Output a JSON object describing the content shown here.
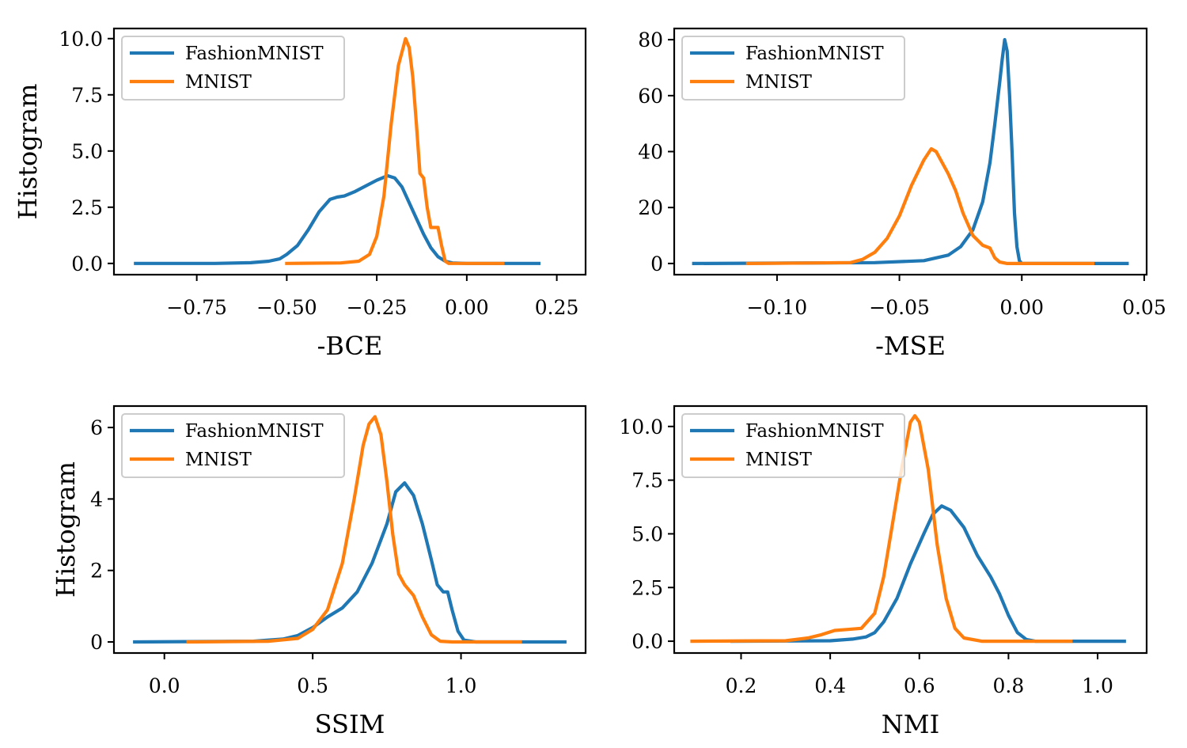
{
  "chart_data": [
    {
      "type": "line",
      "title": "",
      "xlabel": "-BCE",
      "ylabel": "Histogram",
      "xlim": [
        -0.98,
        0.33
      ],
      "ylim": [
        -0.5,
        10.45
      ],
      "xticks": [
        -0.75,
        -0.5,
        -0.25,
        0.0,
        0.25
      ],
      "xtick_labels": [
        "−0.75",
        "−0.50",
        "−0.25",
        "0.00",
        "0.25"
      ],
      "yticks": [
        0,
        2.5,
        5,
        7.5,
        10
      ],
      "ytick_labels": [
        "0.0",
        "2.5",
        "5.0",
        "7.5",
        "10.0"
      ],
      "grid": false,
      "legend_position": "upper left",
      "series": [
        {
          "name": "FashionMNIST",
          "color": "#1f77b4",
          "x": [
            -0.92,
            -0.7,
            -0.6,
            -0.55,
            -0.52,
            -0.5,
            -0.47,
            -0.44,
            -0.41,
            -0.38,
            -0.36,
            -0.34,
            -0.31,
            -0.28,
            -0.25,
            -0.22,
            -0.2,
            -0.18,
            -0.16,
            -0.14,
            -0.12,
            -0.1,
            -0.08,
            -0.06,
            -0.04,
            0.0,
            0.2
          ],
          "y": [
            0,
            0,
            0.03,
            0.1,
            0.2,
            0.4,
            0.8,
            1.5,
            2.3,
            2.85,
            2.95,
            3.0,
            3.2,
            3.45,
            3.7,
            3.9,
            3.8,
            3.4,
            2.7,
            2.0,
            1.3,
            0.7,
            0.3,
            0.1,
            0.02,
            0,
            0
          ]
        },
        {
          "name": "MNIST",
          "color": "#ff7f0e",
          "x": [
            -0.5,
            -0.35,
            -0.3,
            -0.27,
            -0.25,
            -0.23,
            -0.21,
            -0.19,
            -0.17,
            -0.16,
            -0.15,
            -0.14,
            -0.13,
            -0.12,
            -0.11,
            -0.1,
            -0.09,
            -0.08,
            -0.07,
            -0.06,
            -0.05,
            0.1
          ],
          "y": [
            0,
            0.02,
            0.1,
            0.4,
            1.2,
            3.0,
            6.2,
            8.8,
            10.0,
            9.6,
            8.3,
            6.2,
            4.0,
            3.8,
            2.5,
            1.6,
            1.6,
            1.6,
            0.8,
            0.1,
            0,
            0
          ]
        }
      ]
    },
    {
      "type": "line",
      "title": "",
      "xlabel": "-MSE",
      "ylabel": "",
      "xlim": [
        -0.142,
        0.051
      ],
      "ylim": [
        -4,
        84
      ],
      "xticks": [
        -0.1,
        -0.05,
        0.0,
        0.05
      ],
      "xtick_labels": [
        "−0.10",
        "−0.05",
        "0.00",
        "0.05"
      ],
      "yticks": [
        0,
        20,
        40,
        60,
        80
      ],
      "ytick_labels": [
        "0",
        "20",
        "40",
        "60",
        "80"
      ],
      "grid": false,
      "legend_position": "upper left",
      "series": [
        {
          "name": "FashionMNIST",
          "color": "#1f77b4",
          "x": [
            -0.134,
            -0.06,
            -0.04,
            -0.03,
            -0.025,
            -0.02,
            -0.016,
            -0.013,
            -0.011,
            -0.009,
            -0.008,
            -0.007,
            -0.006,
            -0.005,
            -0.004,
            -0.003,
            -0.002,
            -0.001,
            0.0,
            0.043
          ],
          "y": [
            0,
            0.3,
            1,
            3,
            6,
            12,
            22,
            36,
            50,
            65,
            73,
            80,
            76,
            60,
            40,
            18,
            6,
            1,
            0,
            0
          ]
        },
        {
          "name": "MNIST",
          "color": "#ff7f0e",
          "x": [
            -0.112,
            -0.07,
            -0.065,
            -0.06,
            -0.055,
            -0.05,
            -0.045,
            -0.04,
            -0.037,
            -0.035,
            -0.03,
            -0.027,
            -0.024,
            -0.02,
            -0.016,
            -0.013,
            -0.011,
            -0.009,
            -0.006,
            0.0,
            0.029
          ],
          "y": [
            0,
            0.3,
            1.5,
            4,
            9,
            17,
            28,
            37,
            41,
            40,
            32,
            26,
            18,
            10,
            6.5,
            5.5,
            2,
            0.5,
            0,
            0,
            0
          ]
        }
      ]
    },
    {
      "type": "line",
      "title": "",
      "xlabel": "SSIM",
      "ylabel": "Histogram",
      "xlim": [
        -0.17,
        1.42
      ],
      "ylim": [
        -0.31,
        6.6
      ],
      "xticks": [
        0.0,
        0.5,
        1.0
      ],
      "xtick_labels": [
        "0.0",
        "0.5",
        "1.0"
      ],
      "yticks": [
        0,
        2,
        4,
        6
      ],
      "ytick_labels": [
        "0",
        "2",
        "4",
        "6"
      ],
      "grid": false,
      "legend_position": "upper left",
      "series": [
        {
          "name": "FashionMNIST",
          "color": "#1f77b4",
          "x": [
            -0.1,
            0.3,
            0.4,
            0.45,
            0.5,
            0.55,
            0.6,
            0.65,
            0.7,
            0.75,
            0.78,
            0.81,
            0.84,
            0.87,
            0.9,
            0.92,
            0.94,
            0.955,
            0.97,
            0.99,
            1.01,
            1.05,
            1.35
          ],
          "y": [
            0,
            0.02,
            0.08,
            0.18,
            0.4,
            0.7,
            0.95,
            1.4,
            2.2,
            3.3,
            4.2,
            4.45,
            4.1,
            3.3,
            2.3,
            1.6,
            1.4,
            1.4,
            0.9,
            0.3,
            0.05,
            0,
            0
          ]
        },
        {
          "name": "MNIST",
          "color": "#ff7f0e",
          "x": [
            0.08,
            0.35,
            0.45,
            0.5,
            0.55,
            0.6,
            0.64,
            0.67,
            0.69,
            0.71,
            0.73,
            0.75,
            0.77,
            0.79,
            0.81,
            0.84,
            0.87,
            0.9,
            0.93,
            0.97,
            1.2
          ],
          "y": [
            0,
            0.02,
            0.1,
            0.35,
            0.9,
            2.2,
            4.0,
            5.5,
            6.1,
            6.3,
            5.8,
            4.5,
            3.0,
            1.9,
            1.6,
            1.3,
            0.7,
            0.2,
            0.02,
            0,
            0
          ]
        }
      ]
    },
    {
      "type": "line",
      "title": "",
      "xlabel": "NMI",
      "ylabel": "",
      "xlim": [
        0.05,
        1.11
      ],
      "ylim": [
        -0.55,
        10.95
      ],
      "xticks": [
        0.2,
        0.4,
        0.6,
        0.8,
        1.0
      ],
      "xtick_labels": [
        "0.2",
        "0.4",
        "0.6",
        "0.8",
        "1.0"
      ],
      "yticks": [
        0,
        2.5,
        5,
        7.5,
        10
      ],
      "ytick_labels": [
        "0.0",
        "2.5",
        "5.0",
        "7.5",
        "10.0"
      ],
      "grid": false,
      "legend_position": "upper left",
      "series": [
        {
          "name": "FashionMNIST",
          "color": "#1f77b4",
          "x": [
            0.18,
            0.4,
            0.45,
            0.48,
            0.5,
            0.52,
            0.55,
            0.58,
            0.61,
            0.63,
            0.65,
            0.67,
            0.7,
            0.73,
            0.76,
            0.78,
            0.8,
            0.82,
            0.84,
            0.86,
            1.06
          ],
          "y": [
            0,
            0.02,
            0.1,
            0.2,
            0.4,
            0.9,
            2.0,
            3.6,
            5.0,
            5.9,
            6.3,
            6.1,
            5.3,
            4.0,
            3.0,
            2.2,
            1.2,
            0.4,
            0.08,
            0,
            0
          ]
        },
        {
          "name": "MNIST",
          "color": "#ff7f0e",
          "x": [
            0.09,
            0.3,
            0.35,
            0.38,
            0.41,
            0.44,
            0.47,
            0.5,
            0.52,
            0.54,
            0.56,
            0.58,
            0.59,
            0.6,
            0.62,
            0.64,
            0.66,
            0.68,
            0.7,
            0.74,
            0.94
          ],
          "y": [
            0,
            0.02,
            0.15,
            0.3,
            0.5,
            0.55,
            0.6,
            1.3,
            3.0,
            5.5,
            8.0,
            10.2,
            10.5,
            10.2,
            8.0,
            4.5,
            2.0,
            0.6,
            0.15,
            0,
            0
          ]
        }
      ]
    }
  ]
}
